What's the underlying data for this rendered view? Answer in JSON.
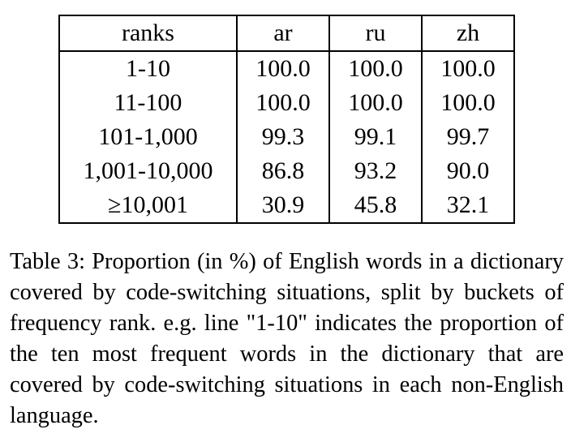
{
  "table": {
    "headers": [
      "ranks",
      "ar",
      "ru",
      "zh"
    ],
    "rows": [
      [
        "1-10",
        "100.0",
        "100.0",
        "100.0"
      ],
      [
        "11-100",
        "100.0",
        "100.0",
        "100.0"
      ],
      [
        "101-1,000",
        "99.3",
        "99.1",
        "99.7"
      ],
      [
        "1,001-10,000",
        "86.8",
        "93.2",
        "90.0"
      ],
      [
        "≥10,001",
        "30.9",
        "45.8",
        "32.1"
      ]
    ]
  },
  "caption": {
    "text": "Table 3: Proportion (in %) of English words in a dictionary covered by code-switching situations, split by buckets of frequency rank. e.g. line \"1-10\" indicates the proportion of the ten most frequent words in the dictionary that are covered by code-switching situations in each non-English language."
  }
}
